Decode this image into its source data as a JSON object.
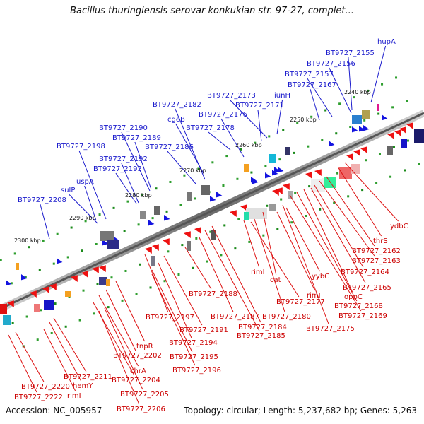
{
  "header": {
    "title": "Bacillus thuringiensis serovar konkukian str. 97-27, complet..."
  },
  "footer": {
    "accession": "Accession: NC_005957",
    "summary": "Topology: circular; Length: 5,237,682 bp; Genes: 5,263"
  },
  "scale_labels": [
    "2240 kbp",
    "2250 kbp",
    "2260 kbp",
    "2270 kbp",
    "2280 kbp",
    "2290 kbp",
    "2300 kbp"
  ],
  "upper_labels": [
    "hupA",
    "BT9727_2155",
    "BT9727_2156",
    "BT9727_2157",
    "BT9727_2167",
    "iunH",
    "BT9727_2173",
    "BT9727_2171",
    "BT9727_2182",
    "BT9727_2176",
    "cgeB",
    "BT9727_2178",
    "BT9727_2190",
    "BT9727_2189",
    "BT9727_2198",
    "BT9727_2186",
    "BT9727_2192",
    "BT9727_2193",
    "uspA",
    "sulP",
    "BT9727_2208"
  ],
  "lower_labels": [
    "ydbC",
    "thrS",
    "BT9727_2162",
    "BT9727_2163",
    "BT9727_2164",
    "BT9727_2165",
    "oppC",
    "BT9727_2168",
    "BT9727_2169",
    "rimI",
    "cat",
    "yybC",
    "rimI",
    "BT9727_2188",
    "BT9727_2177",
    "BT9727_2180",
    "BT9727_2187",
    "BT9727_2175",
    "BT9727_2184",
    "BT9727_2185",
    "BT9727_2197",
    "BT9727_2191",
    "BT9727_2194",
    "tnpR",
    "BT9727_2195",
    "BT9727_2202",
    "BT9727_2196",
    "chrA",
    "BT9727_2204",
    "BT9727_2211",
    "hemY",
    "BT9727_2205",
    "BT9727_2220",
    "rimI",
    "BT9727_2222",
    "BT9727_2206"
  ]
}
